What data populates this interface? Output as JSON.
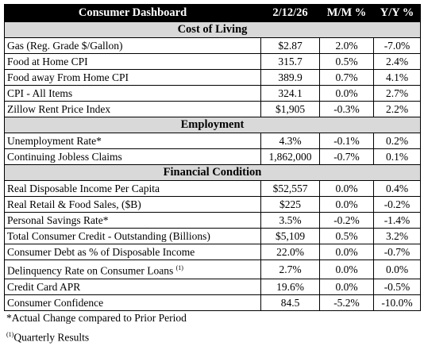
{
  "header": {
    "title": "Consumer Dashboard",
    "columns": [
      "2/12/26",
      "M/M %",
      "Y/Y %"
    ]
  },
  "sections": [
    {
      "title": "Cost of Living",
      "rows": [
        {
          "label": "Gas (Reg. Grade $/Gallon)",
          "values": [
            "$2.87",
            "2.0%",
            "-7.0%"
          ]
        },
        {
          "label": "Food at Home CPI",
          "values": [
            "315.7",
            "0.5%",
            "2.4%"
          ]
        },
        {
          "label": "Food away From Home CPI",
          "values": [
            "389.9",
            "0.7%",
            "4.1%"
          ]
        },
        {
          "label": "CPI - All Items",
          "values": [
            "324.1",
            "0.0%",
            "2.7%"
          ]
        },
        {
          "label": "Zillow Rent Price Index",
          "values": [
            "$1,905",
            "-0.3%",
            "2.2%"
          ]
        }
      ]
    },
    {
      "title": "Employment",
      "rows": [
        {
          "label": "Unemployment Rate*",
          "values": [
            "4.3%",
            "-0.1%",
            "0.2%"
          ]
        },
        {
          "label": "Continuing Jobless Claims",
          "values": [
            "1,862,000",
            "-0.7%",
            "0.1%"
          ]
        }
      ]
    },
    {
      "title": "Financial Condition",
      "rows": [
        {
          "label": "Real Disposable Income Per Capita",
          "values": [
            "$52,557",
            "0.0%",
            "0.4%"
          ]
        },
        {
          "label": "Real Retail & Food Sales, ($B)",
          "values": [
            "$225",
            "0.0%",
            "-0.2%"
          ]
        },
        {
          "label": "Personal Savings Rate*",
          "values": [
            "3.5%",
            "-0.2%",
            "-1.4%"
          ]
        },
        {
          "label": "Total Consumer Credit - Outstanding (Billions)",
          "values": [
            "$5,109",
            "0.5%",
            "3.2%"
          ]
        },
        {
          "label": "Consumer Debt as % of Disposable Income",
          "values": [
            "22.0%",
            "0.0%",
            "-0.7%"
          ]
        },
        {
          "label": "Delinquency Rate on Consumer Loans",
          "note": "(1)",
          "values": [
            "2.7%",
            "0.0%",
            "0.0%"
          ]
        },
        {
          "label": "Credit Card APR",
          "values": [
            "19.6%",
            "0.0%",
            "-0.5%"
          ]
        },
        {
          "label": "Consumer Confidence",
          "values": [
            "84.5",
            "-5.2%",
            "-10.0%"
          ]
        }
      ]
    }
  ],
  "footnotes": [
    {
      "text": "*Actual Change compared to Prior Period"
    },
    {
      "marker": "(1)",
      "text": "Quarterly Results"
    }
  ]
}
